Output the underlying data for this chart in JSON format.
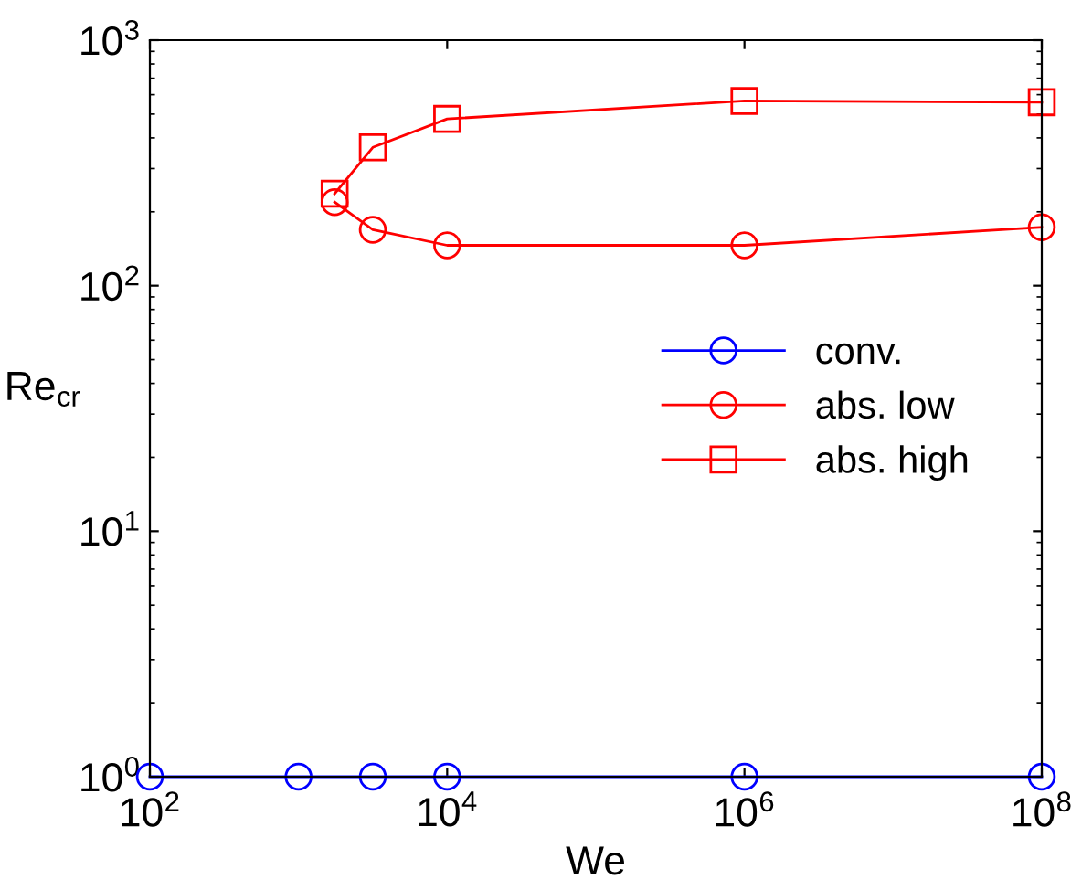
{
  "chart_data": {
    "type": "line",
    "xlabel": "We",
    "ylabel": "Re$_{cr}$",
    "log": "xy",
    "xlim": [
      100,
      100000000
    ],
    "ylim": [
      1,
      1000
    ],
    "xticks": [
      {
        "value": 100,
        "label": "10$^{2}$"
      },
      {
        "value": 10000,
        "label": "10$^{4}$"
      },
      {
        "value": 1000000,
        "label": "10$^{6}$"
      },
      {
        "value": 100000000,
        "label": "10$^{8}$"
      }
    ],
    "yticks": [
      {
        "value": 1,
        "label": "10$^{0}$"
      },
      {
        "value": 10,
        "label": "10$^{1}$"
      },
      {
        "value": 100,
        "label": "10$^{2}$"
      },
      {
        "value": 1000,
        "label": "10$^{3}$"
      }
    ],
    "legend": "right",
    "grid": false,
    "line_style": "solid",
    "series": [
      {
        "name": "conv.",
        "color": "#0000ff",
        "marker": "circle",
        "x": [
          100,
          1000,
          3162,
          10000,
          1000000,
          100000000
        ],
        "values": [
          1,
          1,
          1,
          1,
          1,
          1
        ]
      },
      {
        "name": "abs. low",
        "color": "#ff0000",
        "marker": "circle",
        "x": [
          1750,
          3162,
          10000,
          1000000,
          100000000
        ],
        "values": [
          219,
          169,
          146,
          146,
          173
        ]
      },
      {
        "name": "abs. high",
        "color": "#ff0000",
        "marker": "square",
        "x": [
          1750,
          3162,
          10000,
          1000000,
          100000000
        ],
        "values": [
          237,
          366,
          478,
          566,
          559
        ]
      }
    ]
  }
}
